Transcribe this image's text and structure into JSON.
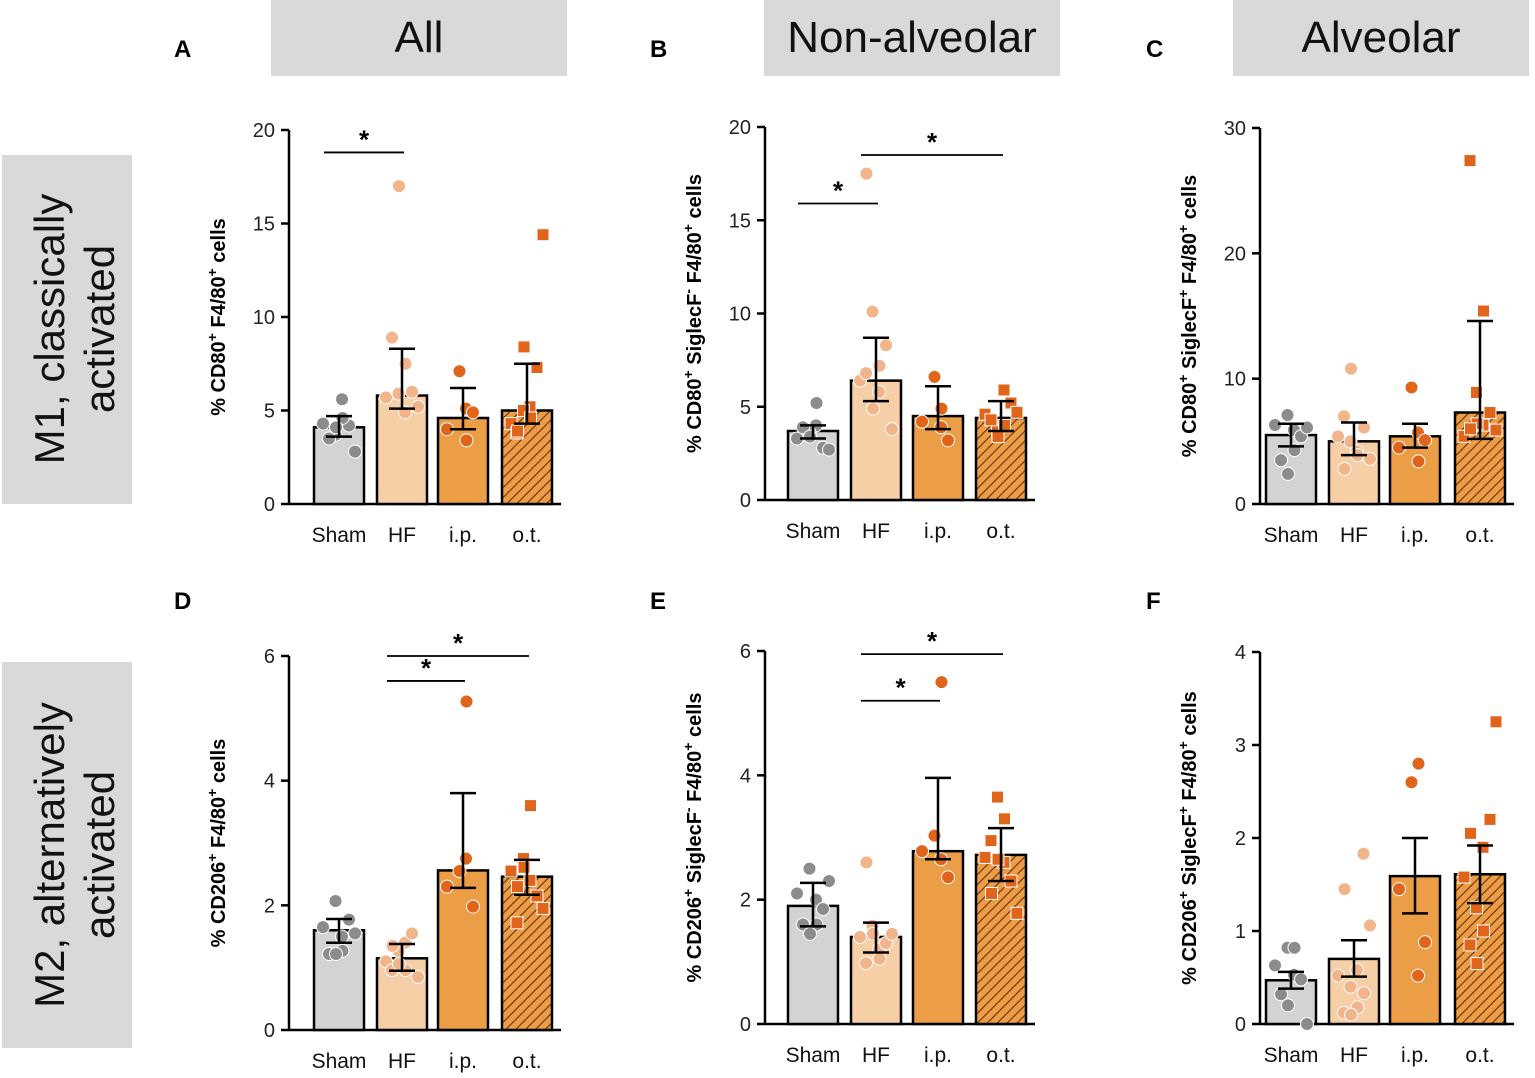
{
  "column_headers": [
    "All",
    "Non-alveolar",
    "Alveolar"
  ],
  "row_headers": [
    {
      "line1": "M1, classically",
      "line2": "activated"
    },
    {
      "line1": "M2, alternatively",
      "line2": "activated"
    }
  ],
  "colors": {
    "sham": "#d3d3d3",
    "sham_dot": "#8c8c8c",
    "hf": "#f7cfa6",
    "hf_dot": "#f2b48a",
    "ip": "#ec9e46",
    "ip_dot": "#e0641a",
    "ot": "#ec9e46",
    "ot_dot": "#e0641a",
    "header_bg": "#d9d9d9"
  },
  "chart_data": [
    {
      "panel": "A",
      "type": "bar",
      "ylabel": "% CD80+ F4/80+ cells",
      "ylabel_parts": [
        [
          "% CD80",
          ""
        ],
        [
          "+",
          "sup"
        ],
        [
          " F4/80",
          ""
        ],
        [
          "+",
          "sup"
        ],
        [
          " cells",
          ""
        ]
      ],
      "categories": [
        "Sham",
        "HF",
        "i.p.",
        "o.t."
      ],
      "ylim": [
        0,
        20
      ],
      "yticks": [
        0,
        5,
        10,
        15,
        20
      ],
      "means": [
        4.1,
        5.8,
        4.6,
        5.0
      ],
      "err_low": [
        3.6,
        5.1,
        4.0,
        4.3
      ],
      "err_high": [
        4.7,
        8.3,
        6.2,
        7.5
      ],
      "points": [
        [
          4.3,
          5.6,
          4.2,
          3.7,
          4.6,
          3.5,
          4.1,
          2.8
        ],
        [
          5.7,
          4.9,
          6.0,
          5.9,
          7.5,
          8.9,
          17.0,
          5.2
        ],
        [
          4.0,
          5.1,
          4.9,
          7.1,
          3.4
        ],
        [
          4.3,
          5.2,
          7.3,
          5.0,
          4.6,
          3.8,
          8.4,
          14.4,
          3.9
        ]
      ],
      "sig": [
        {
          "from": 0,
          "to": 1,
          "y": 18.8,
          "label": "*"
        }
      ]
    },
    {
      "panel": "B",
      "type": "bar",
      "ylabel": "% CD80+ SiglecF- F4/80+ cells",
      "ylabel_parts": [
        [
          "% CD80",
          ""
        ],
        [
          "+",
          "sup"
        ],
        [
          " SiglecF",
          ""
        ],
        [
          "-",
          "sup"
        ],
        [
          " F4/80",
          ""
        ],
        [
          "+",
          "sup"
        ],
        [
          " cells",
          ""
        ]
      ],
      "categories": [
        "Sham",
        "HF",
        "i.p.",
        "o.t."
      ],
      "ylim": [
        0,
        20
      ],
      "yticks": [
        0,
        5,
        10,
        15,
        20
      ],
      "means": [
        3.7,
        6.4,
        4.5,
        4.4
      ],
      "err_low": [
        3.3,
        5.3,
        3.8,
        3.7
      ],
      "err_high": [
        4.0,
        8.7,
        6.1,
        5.3
      ],
      "points": [
        [
          3.3,
          4.0,
          2.8,
          3.6,
          5.2,
          3.9,
          3.4,
          2.7
        ],
        [
          6.4,
          5.8,
          8.3,
          10.1,
          7.2,
          6.8,
          4.9,
          3.8,
          17.5
        ],
        [
          4.2,
          3.9,
          3.2,
          6.6,
          4.9
        ],
        [
          4.6,
          5.9,
          5.2,
          3.7,
          4.0,
          4.3,
          3.4,
          4.7
        ]
      ],
      "sig": [
        {
          "from": 0,
          "to": 1,
          "y": 15.9,
          "label": "*"
        },
        {
          "from": 1,
          "to": 3,
          "y": 18.5,
          "label": "*"
        }
      ]
    },
    {
      "panel": "C",
      "type": "bar",
      "ylabel": "% CD80+ SiglecF+ F4/80+ cells",
      "ylabel_parts": [
        [
          "% CD80",
          ""
        ],
        [
          "+",
          "sup"
        ],
        [
          " SiglecF",
          ""
        ],
        [
          "+",
          "sup"
        ],
        [
          " F4/80",
          ""
        ],
        [
          "+",
          "sup"
        ],
        [
          " cells",
          ""
        ]
      ],
      "categories": [
        "Sham",
        "HF",
        "i.p.",
        "o.t."
      ],
      "ylim": [
        0,
        30
      ],
      "yticks": [
        0,
        10,
        20,
        30
      ],
      "means": [
        5.5,
        5.0,
        5.4,
        7.3
      ],
      "err_low": [
        4.6,
        3.9,
        4.5,
        5.2
      ],
      "err_high": [
        6.4,
        6.5,
        6.4,
        14.6
      ],
      "points": [
        [
          6.3,
          5.9,
          5.4,
          7.1,
          4.3,
          3.5,
          2.4,
          6.1
        ],
        [
          5.4,
          4.2,
          6.1,
          5.0,
          3.9,
          7.0,
          10.8,
          3.6,
          2.8
        ],
        [
          4.5,
          5.7,
          5.1,
          9.3,
          3.4
        ],
        [
          5.4,
          6.3,
          7.3,
          8.9,
          15.4,
          27.4,
          6.4,
          5.9,
          6.0
        ]
      ],
      "sig": []
    },
    {
      "panel": "D",
      "type": "bar",
      "ylabel": "% CD206+ F4/80+ cells",
      "ylabel_parts": [
        [
          "% CD206",
          ""
        ],
        [
          "+",
          "sup"
        ],
        [
          " F4/80",
          ""
        ],
        [
          "+",
          "sup"
        ],
        [
          " cells",
          ""
        ]
      ],
      "categories": [
        "Sham",
        "HF",
        "i.p.",
        "o.t."
      ],
      "ylim": [
        0,
        6
      ],
      "yticks": [
        0,
        2,
        4,
        6
      ],
      "means": [
        1.6,
        1.15,
        2.56,
        2.46
      ],
      "err_low": [
        1.4,
        0.95,
        2.28,
        2.17
      ],
      "err_high": [
        1.78,
        1.38,
        3.8,
        2.73
      ],
      "points": [
        [
          1.65,
          1.5,
          1.77,
          2.07,
          1.27,
          1.22,
          1.22,
          1.55
        ],
        [
          1.1,
          1.4,
          1.55,
          1.27,
          0.96,
          0.96,
          1.06,
          0.85,
          1.35
        ],
        [
          2.3,
          2.75,
          1.98,
          2.55,
          5.27
        ],
        [
          2.55,
          2.4,
          2.15,
          2.75,
          3.6,
          1.72,
          2.61,
          1.95,
          2.3
        ]
      ],
      "sig": [
        {
          "from": 1,
          "to": 2,
          "y": 5.6,
          "label": "*"
        },
        {
          "from": 1,
          "to": 3,
          "y": 6.0,
          "label": "*"
        }
      ]
    },
    {
      "panel": "E",
      "type": "bar",
      "ylabel": "% CD206+ SiglecF- F4/80+ cells",
      "ylabel_parts": [
        [
          "% CD206",
          ""
        ],
        [
          "+",
          "sup"
        ],
        [
          " SiglecF",
          ""
        ],
        [
          "-",
          "sup"
        ],
        [
          " F4/80",
          ""
        ],
        [
          "+",
          "sup"
        ],
        [
          " cells",
          ""
        ]
      ],
      "categories": [
        "Sham",
        "HF",
        "i.p.",
        "o.t."
      ],
      "ylim": [
        0,
        6
      ],
      "yticks": [
        0,
        2,
        4,
        6
      ],
      "means": [
        1.9,
        1.4,
        2.78,
        2.72
      ],
      "err_low": [
        1.57,
        1.15,
        2.65,
        2.3
      ],
      "err_high": [
        2.27,
        1.63,
        3.96,
        3.15
      ],
      "points": [
        [
          2.1,
          2.0,
          1.85,
          2.5,
          1.6,
          1.6,
          1.45,
          2.3
        ],
        [
          1.4,
          1.2,
          1.3,
          1.58,
          1.05,
          0.98,
          1.45,
          1.45,
          2.6
        ],
        [
          2.78,
          2.65,
          2.36,
          3.03,
          5.5
        ],
        [
          2.68,
          2.6,
          2.3,
          3.65,
          3.3,
          2.95,
          2.65,
          1.78,
          2.1
        ]
      ],
      "sig": [
        {
          "from": 1,
          "to": 2,
          "y": 5.2,
          "label": "*"
        },
        {
          "from": 1,
          "to": 3,
          "y": 5.95,
          "label": "*"
        }
      ]
    },
    {
      "panel": "F",
      "type": "bar",
      "ylabel": "% CD206+ SiglecF+ F4/80+ cells",
      "ylabel_parts": [
        [
          "% CD206",
          ""
        ],
        [
          "+",
          "sup"
        ],
        [
          " SiglecF",
          ""
        ],
        [
          "+",
          "sup"
        ],
        [
          " F4/80",
          ""
        ],
        [
          "+",
          "sup"
        ],
        [
          " cells",
          ""
        ]
      ],
      "categories": [
        "Sham",
        "HF",
        "i.p.",
        "o.t."
      ],
      "ylim": [
        0,
        4
      ],
      "yticks": [
        0,
        1,
        2,
        3,
        4
      ],
      "means": [
        0.47,
        0.7,
        1.59,
        1.61
      ],
      "err_low": [
        0.38,
        0.51,
        1.19,
        1.3
      ],
      "err_high": [
        0.56,
        0.9,
        2.0,
        1.92
      ],
      "points": [
        [
          0.63,
          0.53,
          0.48,
          0.82,
          0.82,
          0.32,
          0.2,
          0.0
        ],
        [
          0.52,
          0.58,
          0.33,
          0.4,
          0.18,
          0.12,
          0.1,
          1.06,
          1.45,
          1.83
        ],
        [
          1.45,
          0.52,
          0.88,
          2.6,
          2.8
        ],
        [
          1.58,
          1.9,
          2.2,
          1.25,
          1.0,
          0.85,
          0.65,
          3.25,
          2.05
        ]
      ],
      "sig": []
    }
  ],
  "panel_letters": [
    "A",
    "B",
    "C",
    "D",
    "E",
    "F"
  ]
}
